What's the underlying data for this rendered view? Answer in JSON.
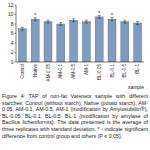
{
  "chart_data": {
    "type": "bar",
    "title": "Figure 4: TAP of non-fat Varenets sample with different starches: Control (without starch), Native (potato starch), AM-0.05, AM-0.1, AM-0.5, AM-1 (modification by Amylosubtilin®), BL-0.05, BL-0.1, BL-0.5, BL-1 (modification by amylase of Bacillus licheniformis). The data presented is the average of three replicates with standard deviation. * - indicate significant difference from control group and others (P ≤ 0.05).",
    "x_label": "sample",
    "categories": [
      "Control",
      "Native",
      "AM-0.05",
      "AM-0.1",
      "AM-0.5",
      "AM-1",
      "BL-0.05",
      "BL-0.1",
      "BL-0.5",
      "BL-1"
    ],
    "values": [
      7,
      9,
      8.5,
      8,
      8.8,
      8.5,
      9.5,
      9,
      8.5,
      8.2
    ],
    "errors": [
      0.3,
      0.3,
      0.3,
      0.3,
      0.3,
      0.3,
      0.3,
      0.3,
      0.3,
      0.3
    ],
    "annotations": [
      {
        "text": "*",
        "category": "Native"
      },
      {
        "text": "*",
        "category": "BL-0.05"
      },
      {
        "text": "*",
        "category": "BL-0.1"
      }
    ],
    "color": "#7f9cc0",
    "ylim": [
      0,
      12
    ],
    "yticks": [
      0,
      2,
      4,
      6,
      8,
      10,
      12
    ],
    "grid": false
  }
}
